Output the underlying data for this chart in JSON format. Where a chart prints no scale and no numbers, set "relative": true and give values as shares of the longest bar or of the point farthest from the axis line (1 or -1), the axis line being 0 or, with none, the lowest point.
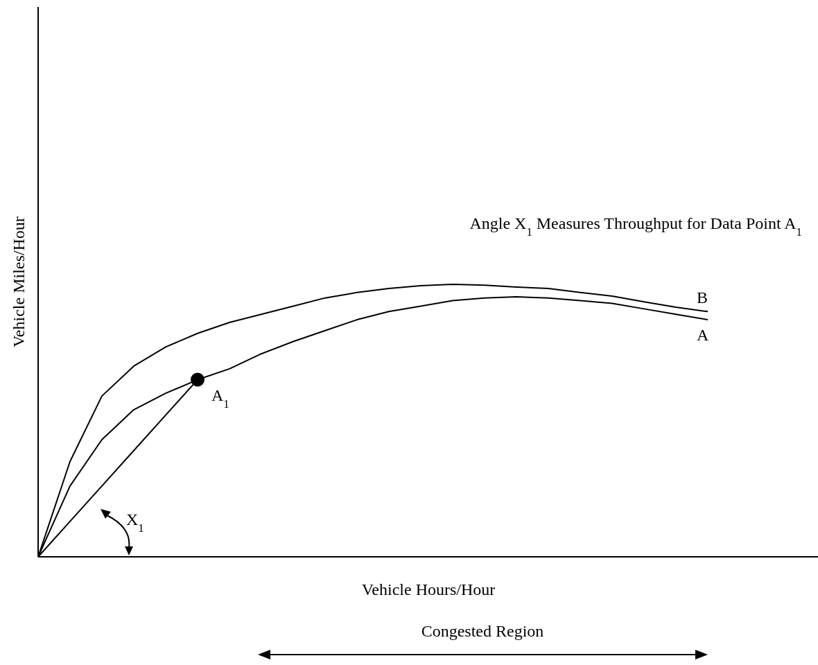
{
  "chart_data": {
    "type": "line",
    "relative": true,
    "xlabel": "Vehicle Hours/Hour",
    "ylabel": "Vehicle Miles/Hour",
    "categories": [
      null,
      null,
      null,
      null,
      null,
      null,
      null,
      null,
      null,
      null,
      null,
      null,
      null,
      null,
      null,
      null,
      null,
      null,
      null,
      null,
      null,
      null
    ],
    "series": [
      {
        "name": "B",
        "color": "#000000",
        "values": [
          0,
          0.35,
          0.59,
          0.7,
          0.77,
          0.82,
          0.86,
          0.89,
          0.92,
          0.95,
          0.97,
          0.985,
          0.995,
          1,
          0.997,
          0.99,
          0.985,
          0.97,
          0.957,
          0.936,
          0.916,
          0.9
        ]
      },
      {
        "name": "A",
        "color": "#000000",
        "values": [
          0,
          0.26,
          0.43,
          0.54,
          0.6,
          0.65,
          0.69,
          0.745,
          0.79,
          0.83,
          0.87,
          0.9,
          0.92,
          0.94,
          0.95,
          0.954,
          0.95,
          0.94,
          0.93,
          0.91,
          0.89,
          0.87
        ]
      },
      {
        "color": "#000000",
        "values": [
          0,
          0.13,
          0.26,
          0.39,
          0.52,
          0.65,
          null,
          null,
          null,
          null,
          null,
          null,
          null,
          null,
          null,
          null,
          null,
          null,
          null,
          null,
          null,
          null
        ]
      }
    ],
    "annotations": [
      "Angle X$_{1}$ Measures Throughput for Data Point A$_{1}$",
      "X$_{1}$",
      "Congested Region",
      "A$_{1}$"
    ]
  }
}
